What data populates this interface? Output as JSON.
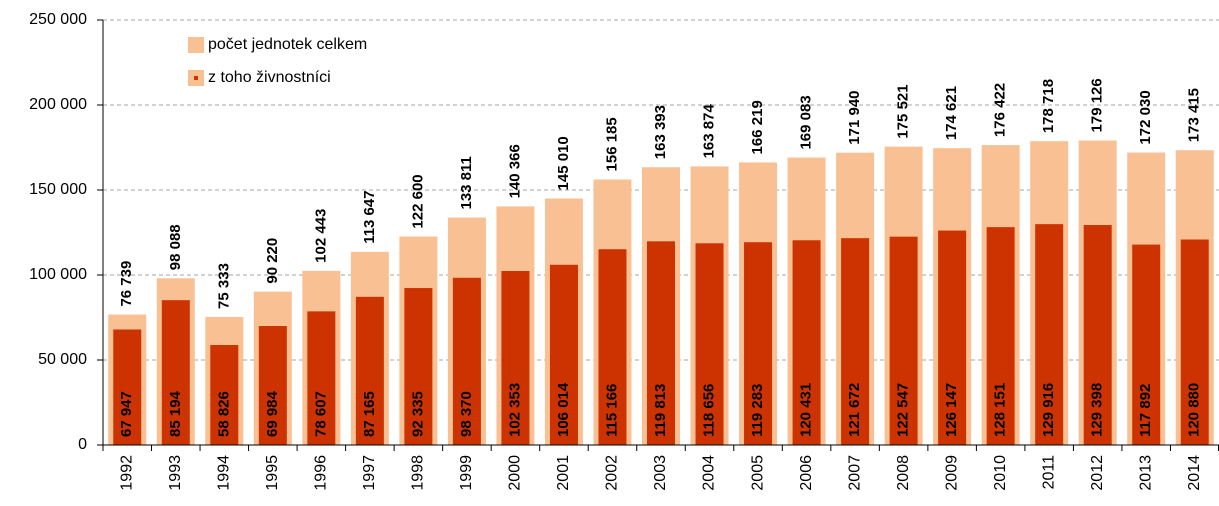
{
  "chart_data": {
    "type": "bar",
    "categories": [
      "1992",
      "1993",
      "1994",
      "1995",
      "1996",
      "1997",
      "1998",
      "1999",
      "2000",
      "2001",
      "2002",
      "2003",
      "2004",
      "2005",
      "2006",
      "2007",
      "2008",
      "2009",
      "2010",
      "2011",
      "2012",
      "2013",
      "2014"
    ],
    "series": [
      {
        "name": "počet jednotek celkem",
        "color": "#f9c193",
        "label_color": "#8b1a2e",
        "values": [
          76739,
          98088,
          75333,
          90220,
          102443,
          113647,
          122600,
          133811,
          140366,
          145010,
          156185,
          163393,
          163874,
          166219,
          169083,
          171940,
          175521,
          174621,
          176422,
          178718,
          179126,
          172030,
          173415
        ],
        "value_labels": [
          "76 739",
          "98 088",
          "75 333",
          "90 220",
          "102 443",
          "113 647",
          "122 600",
          "133 811",
          "140 366",
          "145 010",
          "156 185",
          "163 393",
          "163 874",
          "166 219",
          "169 083",
          "171 940",
          "175 521",
          "174 621",
          "176 422",
          "178 718",
          "179 126",
          "172 030",
          "173 415"
        ]
      },
      {
        "name": "z toho živnostníci",
        "color": "#cc3300",
        "label_color": "#ffffff",
        "values": [
          67947,
          85194,
          58826,
          69984,
          78607,
          87165,
          92335,
          98370,
          102353,
          106014,
          115166,
          119813,
          118656,
          119283,
          120431,
          121672,
          122547,
          126147,
          128151,
          129916,
          129398,
          117892,
          120880
        ],
        "value_labels": [
          "67 947",
          "85 194",
          "58 826",
          "69 984",
          "78 607",
          "87 165",
          "92 335",
          "98 370",
          "102 353",
          "106 014",
          "115 166",
          "119 813",
          "118 656",
          "119 283",
          "120 431",
          "121 672",
          "122 547",
          "126 147",
          "128 151",
          "129 916",
          "129 398",
          "117 892",
          "120 880"
        ]
      }
    ],
    "ylim": [
      0,
      250000
    ],
    "yticks": [
      {
        "value": 0,
        "label": "0"
      },
      {
        "value": 50000,
        "label": "50 000"
      },
      {
        "value": 100000,
        "label": "100 000"
      },
      {
        "value": 150000,
        "label": "150 000"
      },
      {
        "value": 200000,
        "label": "200 000"
      },
      {
        "value": 250000,
        "label": "250 000"
      }
    ],
    "grid": true,
    "legend": "upper left"
  }
}
